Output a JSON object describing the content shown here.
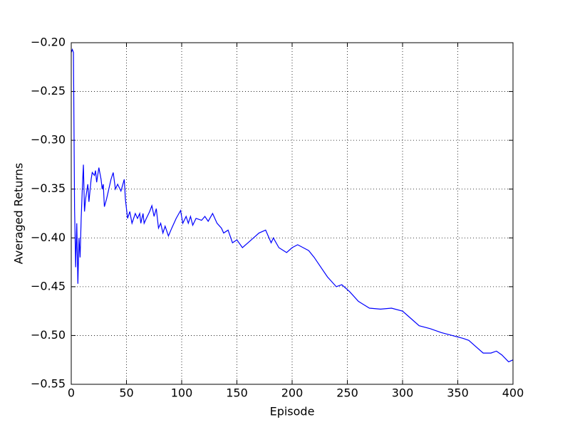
{
  "chart_data": {
    "type": "line",
    "xlabel": "Episode",
    "ylabel": "Averaged Returns",
    "x": [
      0,
      1,
      2,
      3,
      4,
      5,
      6,
      7,
      8,
      9,
      10,
      11,
      12,
      13,
      15,
      16,
      18,
      19,
      21,
      22,
      23,
      25,
      27,
      28,
      29,
      30,
      32,
      34,
      36,
      38,
      40,
      42,
      45,
      48,
      49,
      51,
      53,
      55,
      58,
      60,
      62,
      63,
      65,
      66,
      68,
      71,
      73,
      75,
      77,
      79,
      81,
      83,
      85,
      88,
      91,
      95,
      99,
      101,
      104,
      106,
      108,
      110,
      113,
      118,
      121,
      124,
      128,
      132,
      136,
      138,
      142,
      146,
      150,
      155,
      160,
      165,
      170,
      176,
      181,
      183,
      188,
      195,
      200,
      205,
      210,
      215,
      220,
      226,
      232,
      240,
      245,
      252,
      260,
      270,
      280,
      290,
      300,
      305,
      315,
      325,
      335,
      345,
      355,
      360,
      365,
      373,
      380,
      385,
      390,
      396,
      400
    ],
    "series": [
      {
        "name": "Averaged Returns",
        "color": "#0000ff",
        "values": [
          -0.21,
          -0.207,
          -0.21,
          -0.37,
          -0.43,
          -0.385,
          -0.447,
          -0.4,
          -0.42,
          -0.38,
          -0.35,
          -0.325,
          -0.373,
          -0.36,
          -0.345,
          -0.363,
          -0.34,
          -0.333,
          -0.336,
          -0.331,
          -0.343,
          -0.328,
          -0.34,
          -0.35,
          -0.345,
          -0.368,
          -0.36,
          -0.35,
          -0.34,
          -0.333,
          -0.35,
          -0.345,
          -0.352,
          -0.34,
          -0.36,
          -0.38,
          -0.373,
          -0.385,
          -0.375,
          -0.38,
          -0.375,
          -0.385,
          -0.375,
          -0.385,
          -0.38,
          -0.373,
          -0.367,
          -0.378,
          -0.37,
          -0.39,
          -0.385,
          -0.395,
          -0.388,
          -0.398,
          -0.39,
          -0.38,
          -0.372,
          -0.385,
          -0.378,
          -0.385,
          -0.378,
          -0.387,
          -0.38,
          -0.382,
          -0.378,
          -0.383,
          -0.375,
          -0.385,
          -0.39,
          -0.395,
          -0.392,
          -0.405,
          -0.402,
          -0.41,
          -0.405,
          -0.4,
          -0.395,
          -0.392,
          -0.405,
          -0.4,
          -0.41,
          -0.415,
          -0.41,
          -0.407,
          -0.41,
          -0.413,
          -0.42,
          -0.43,
          -0.44,
          -0.45,
          -0.448,
          -0.455,
          -0.465,
          -0.472,
          -0.473,
          -0.472,
          -0.475,
          -0.48,
          -0.49,
          -0.493,
          -0.497,
          -0.5,
          -0.503,
          -0.505,
          -0.51,
          -0.518,
          -0.518,
          -0.516,
          -0.52,
          -0.527,
          -0.525
        ]
      }
    ],
    "xlim": [
      0,
      400
    ],
    "xticks": [
      0,
      50,
      100,
      150,
      200,
      250,
      300,
      350,
      400
    ],
    "ylim": [
      -0.55,
      -0.2
    ],
    "yticks": [
      {
        "value": -0.55,
        "label": "−0.55"
      },
      {
        "value": -0.5,
        "label": "−0.50"
      },
      {
        "value": -0.45,
        "label": "−0.45"
      },
      {
        "value": -0.4,
        "label": "−0.40"
      },
      {
        "value": -0.35,
        "label": "−0.35"
      },
      {
        "value": -0.3,
        "label": "−0.30"
      },
      {
        "value": -0.25,
        "label": "−0.25"
      },
      {
        "value": -0.2,
        "label": "−0.20"
      }
    ],
    "grid": true
  }
}
